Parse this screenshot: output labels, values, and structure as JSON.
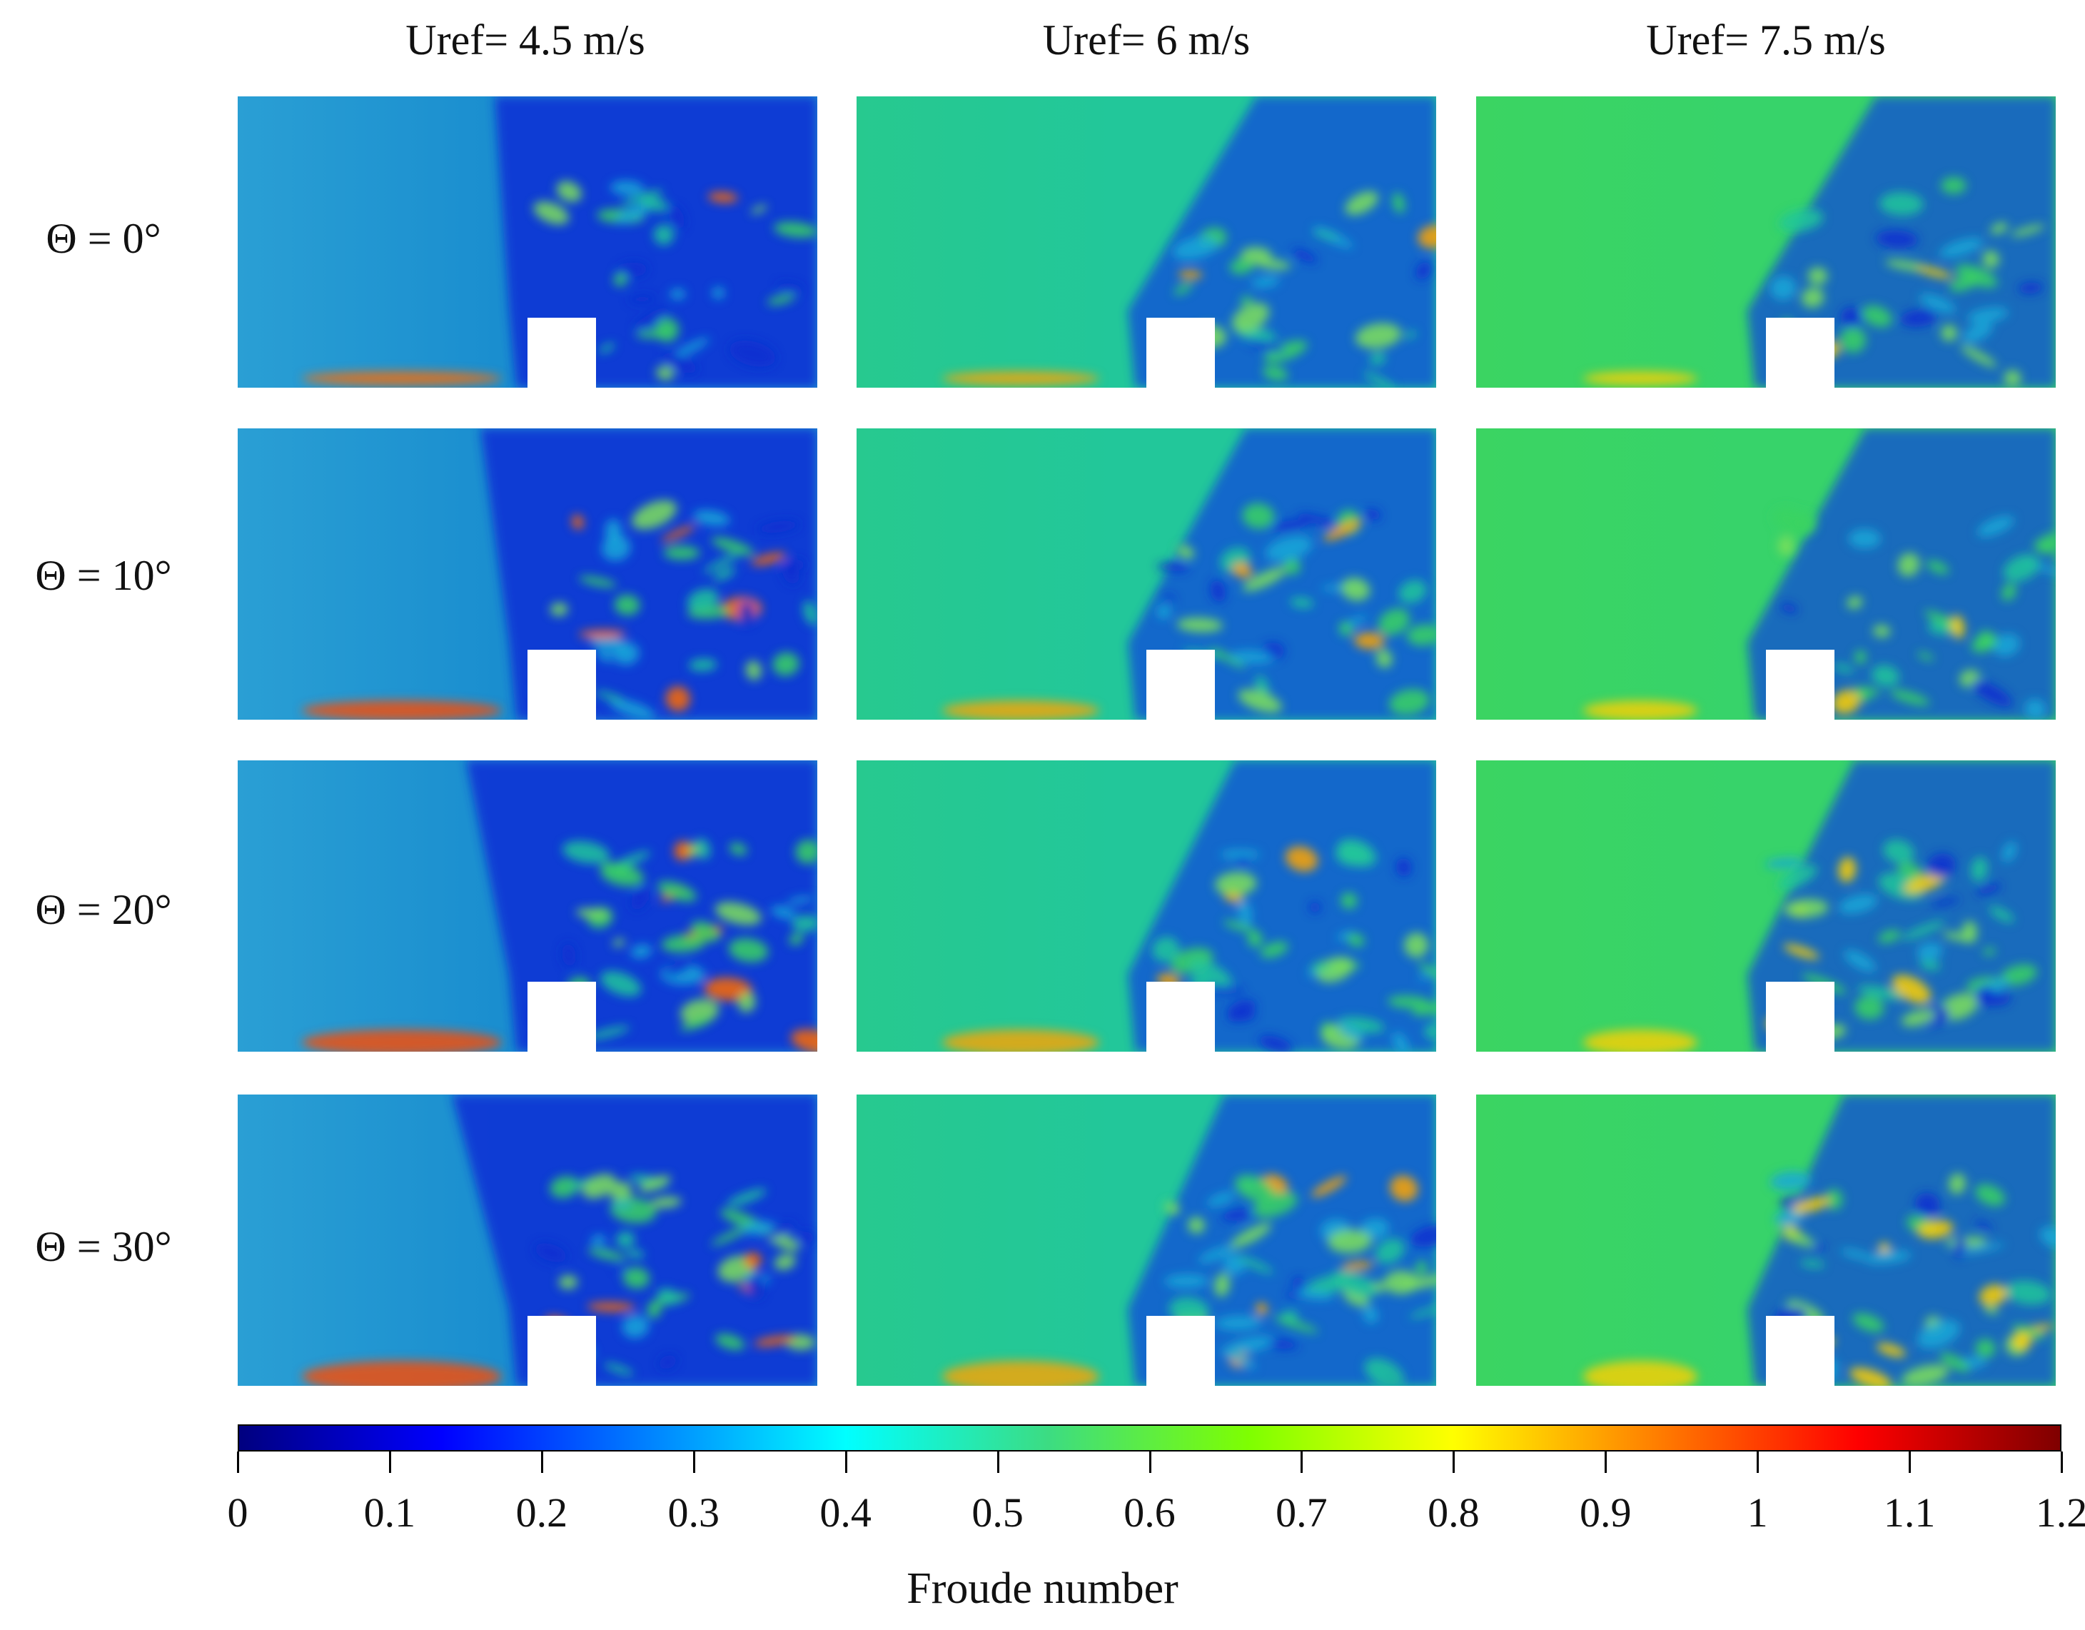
{
  "columns": [
    {
      "title": "Uref= 4.5 m/s"
    },
    {
      "title": "Uref= 6 m/s"
    },
    {
      "title": "Uref= 7.5 m/s"
    }
  ],
  "rows": [
    {
      "label": "Θ = 0°"
    },
    {
      "label": "Θ = 10°"
    },
    {
      "label": "Θ = 20°"
    },
    {
      "label": "Θ = 30°"
    }
  ],
  "colorbar": {
    "title": "Froude number",
    "min": 0,
    "max": 1.2,
    "ticks": [
      "0",
      "0.1",
      "0.2",
      "0.3",
      "0.4",
      "0.5",
      "0.6",
      "0.7",
      "0.8",
      "0.9",
      "1",
      "1.1",
      "1.2"
    ],
    "colors": [
      "#00007f",
      "#0000ff",
      "#007fff",
      "#00ffff",
      "#3cdc82",
      "#7fff00",
      "#ffff00",
      "#ff7f00",
      "#ff0000",
      "#7f0000"
    ]
  },
  "panel_colors": {
    "base": [
      "#1a8ecf",
      "#22c79a",
      "#37d36a"
    ],
    "upper": [
      "#2a9fd4",
      "#27c98f",
      "#3bd462"
    ],
    "wake": [
      "#0a2fd6",
      "#0b3fe0",
      "#0b3fe0"
    ],
    "hot": [
      "#ff6a00",
      "#ffa400",
      "#ffd000"
    ]
  }
}
